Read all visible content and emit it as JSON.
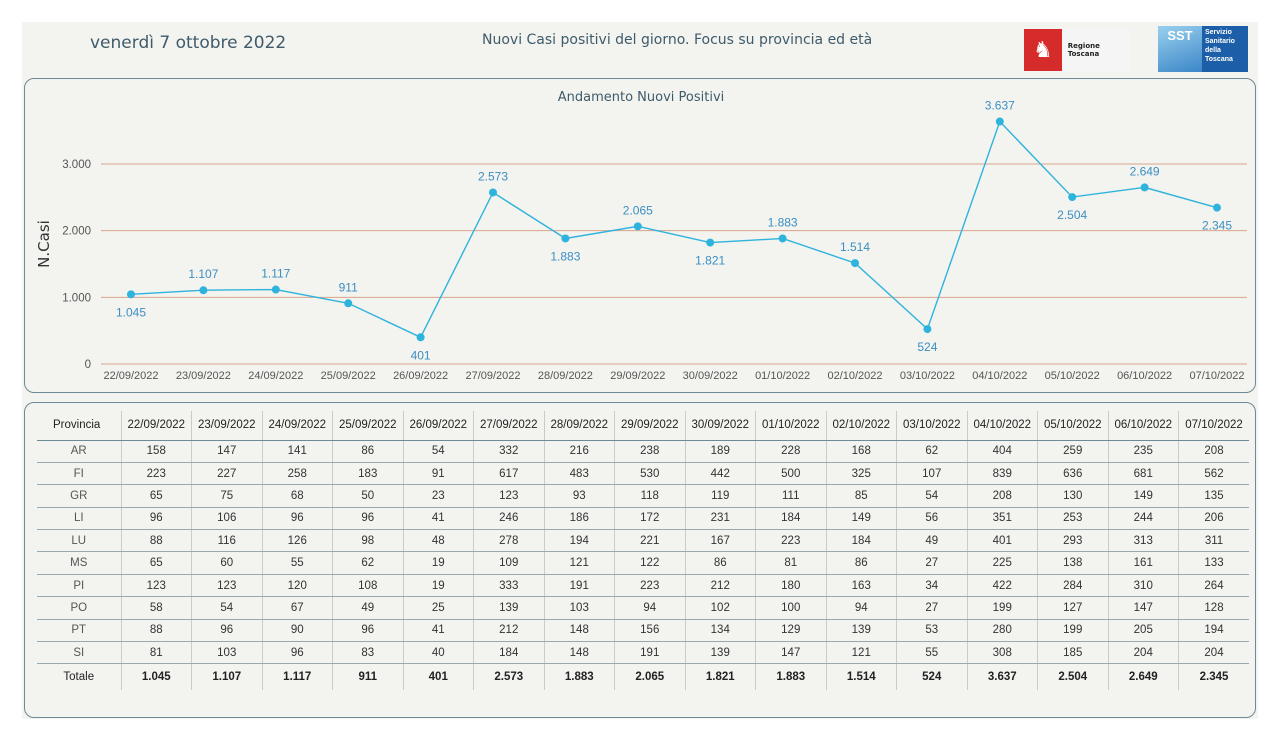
{
  "header": {
    "date": "venerdì 7 ottobre 2022",
    "title": "Nuovi Casi positivi del giorno. Focus su provincia ed età",
    "logo_regione": "Regione Toscana",
    "logo_sst_short": "SST",
    "logo_sst_label": "Servizio Sanitario della Toscana"
  },
  "chart_data": {
    "type": "line",
    "title": "Andamento Nuovi Positivi",
    "xlabel": "",
    "ylabel": "N.Casi",
    "ylim": [
      0,
      3000
    ],
    "yticks": [
      0,
      1000,
      2000,
      3000
    ],
    "ytick_labels": [
      "0",
      "1.000",
      "2.000",
      "3.000"
    ],
    "categories": [
      "22/09/2022",
      "23/09/2022",
      "24/09/2022",
      "25/09/2022",
      "26/09/2022",
      "27/09/2022",
      "28/09/2022",
      "29/09/2022",
      "30/09/2022",
      "01/10/2022",
      "02/10/2022",
      "03/10/2022",
      "04/10/2022",
      "05/10/2022",
      "06/10/2022",
      "07/10/2022"
    ],
    "values": [
      1045,
      1107,
      1117,
      911,
      401,
      2573,
      1883,
      2065,
      1821,
      1883,
      1514,
      524,
      3637,
      2504,
      2649,
      2345
    ],
    "value_labels": [
      "1.045",
      "1.107",
      "1.117",
      "911",
      "401",
      "2.573",
      "1.883",
      "2.065",
      "1.821",
      "1.883",
      "1.514",
      "524",
      "3.637",
      "2.504",
      "2.649",
      "2.345"
    ],
    "grid": true,
    "colors": {
      "line": "#2eb3dd",
      "grid": "#d9a58c",
      "label": "#3b8fc2"
    }
  },
  "table": {
    "header_first": "Provincia",
    "columns": [
      "22/09/2022",
      "23/09/2022",
      "24/09/2022",
      "25/09/2022",
      "26/09/2022",
      "27/09/2022",
      "28/09/2022",
      "29/09/2022",
      "30/09/2022",
      "01/10/2022",
      "02/10/2022",
      "03/10/2022",
      "04/10/2022",
      "05/10/2022",
      "06/10/2022",
      "07/10/2022"
    ],
    "rows": [
      {
        "prov": "AR",
        "values": [
          "158",
          "147",
          "141",
          "86",
          "54",
          "332",
          "216",
          "238",
          "189",
          "228",
          "168",
          "62",
          "404",
          "259",
          "235",
          "208"
        ]
      },
      {
        "prov": "FI",
        "values": [
          "223",
          "227",
          "258",
          "183",
          "91",
          "617",
          "483",
          "530",
          "442",
          "500",
          "325",
          "107",
          "839",
          "636",
          "681",
          "562"
        ]
      },
      {
        "prov": "GR",
        "values": [
          "65",
          "75",
          "68",
          "50",
          "23",
          "123",
          "93",
          "118",
          "119",
          "111",
          "85",
          "54",
          "208",
          "130",
          "149",
          "135"
        ]
      },
      {
        "prov": "LI",
        "values": [
          "96",
          "106",
          "96",
          "96",
          "41",
          "246",
          "186",
          "172",
          "231",
          "184",
          "149",
          "56",
          "351",
          "253",
          "244",
          "206"
        ]
      },
      {
        "prov": "LU",
        "values": [
          "88",
          "116",
          "126",
          "98",
          "48",
          "278",
          "194",
          "221",
          "167",
          "223",
          "184",
          "49",
          "401",
          "293",
          "313",
          "311"
        ]
      },
      {
        "prov": "MS",
        "values": [
          "65",
          "60",
          "55",
          "62",
          "19",
          "109",
          "121",
          "122",
          "86",
          "81",
          "86",
          "27",
          "225",
          "138",
          "161",
          "133"
        ]
      },
      {
        "prov": "PI",
        "values": [
          "123",
          "123",
          "120",
          "108",
          "19",
          "333",
          "191",
          "223",
          "212",
          "180",
          "163",
          "34",
          "422",
          "284",
          "310",
          "264"
        ]
      },
      {
        "prov": "PO",
        "values": [
          "58",
          "54",
          "67",
          "49",
          "25",
          "139",
          "103",
          "94",
          "102",
          "100",
          "94",
          "27",
          "199",
          "127",
          "147",
          "128"
        ]
      },
      {
        "prov": "PT",
        "values": [
          "88",
          "96",
          "90",
          "96",
          "41",
          "212",
          "148",
          "156",
          "134",
          "129",
          "139",
          "53",
          "280",
          "199",
          "205",
          "194"
        ]
      },
      {
        "prov": "SI",
        "values": [
          "81",
          "103",
          "96",
          "83",
          "40",
          "184",
          "148",
          "191",
          "139",
          "147",
          "121",
          "55",
          "308",
          "185",
          "204",
          "204"
        ]
      }
    ],
    "total": {
      "prov": "Totale",
      "values": [
        "1.045",
        "1.107",
        "1.117",
        "911",
        "401",
        "2.573",
        "1.883",
        "2.065",
        "1.821",
        "1.883",
        "1.514",
        "524",
        "3.637",
        "2.504",
        "2.649",
        "2.345"
      ]
    }
  }
}
